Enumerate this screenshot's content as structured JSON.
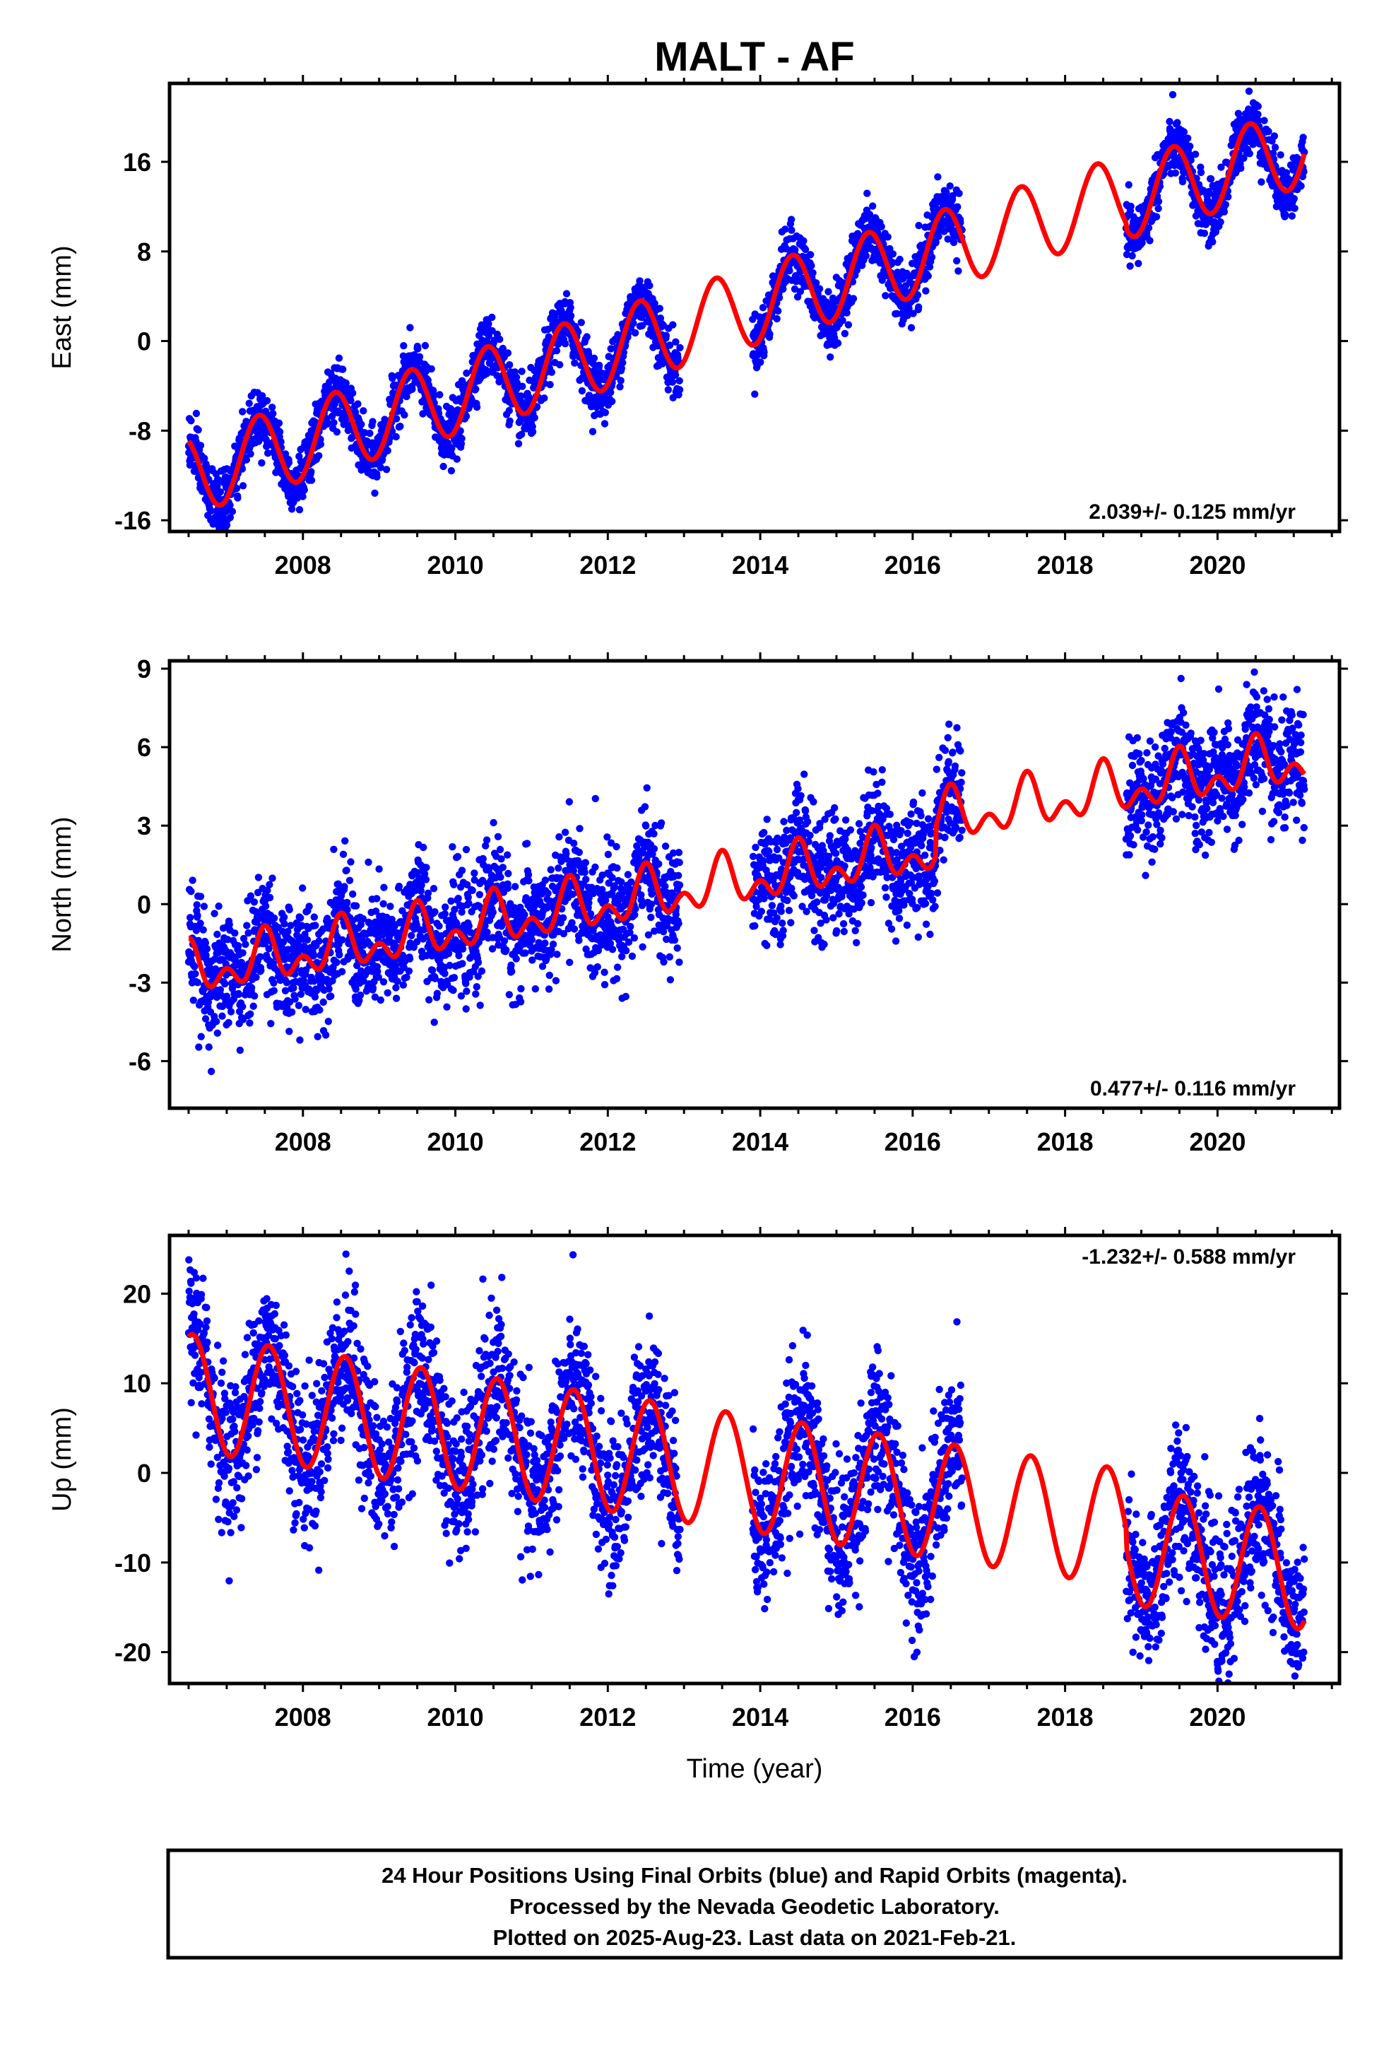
{
  "page_title": "MALT - AF",
  "x_axis_label": "Time (year)",
  "footer": [
    "24 Hour Positions Using Final Orbits (blue) and Rapid Orbits (magenta).",
    "Processed by the Nevada Geodetic Laboratory.",
    "Plotted on 2025-Aug-23. Last data on 2021-Feb-21."
  ],
  "colors": {
    "data_points": "#0000ff",
    "model_curve": "#ff0000",
    "frame": "#000000",
    "background": "#ffffff"
  },
  "chart_data": [
    {
      "type": "scatter",
      "name": "east",
      "ylabel": "East (mm)",
      "rate_label": "2.039+/- 0.125 mm/yr",
      "rate_position": "bottom-right",
      "xlim": [
        2006.25,
        2021.6
      ],
      "ylim": [
        -17,
        23
      ],
      "x_ticks": [
        2008,
        2010,
        2012,
        2014,
        2016,
        2018,
        2020
      ],
      "y_ticks": [
        -16,
        -8,
        0,
        8,
        16
      ],
      "grid": false,
      "model": {
        "rate_mm_per_yr": 2.04,
        "intercept_at_2006_5_mm": -12.0,
        "annual_amplitude_mm": 3.5,
        "annual_peak_year_fraction": 0.42,
        "semiannual_amplitude_mm": 0.0,
        "offset_from_2018_8_mm": -0.5
      },
      "data_segments": [
        [
          2006.5,
          2012.95
        ],
        [
          2013.9,
          2016.65
        ],
        [
          2018.8,
          2021.14
        ]
      ],
      "scatter_sigma_mm": 1.3
    },
    {
      "type": "scatter",
      "name": "north",
      "ylabel": "North (mm)",
      "rate_label": "0.477+/- 0.116 mm/yr",
      "rate_position": "bottom-right",
      "xlim": [
        2006.25,
        2021.6
      ],
      "ylim": [
        -7.8,
        9.3
      ],
      "x_ticks": [
        2008,
        2010,
        2012,
        2014,
        2016,
        2018,
        2020
      ],
      "y_ticks": [
        -6,
        -3,
        0,
        3,
        6,
        9
      ],
      "grid": false,
      "model": {
        "rate_mm_per_yr": 0.48,
        "intercept_at_2006_5_mm": -2.6,
        "annual_amplitude_mm": 0.7,
        "annual_peak_year_fraction": 0.5,
        "semiannual_amplitude_mm": 0.6,
        "semiannual_peak_year_fraction": 0.0,
        "offset_from_2016_3_mm": 1.1
      },
      "data_segments": [
        [
          2006.5,
          2012.95
        ],
        [
          2013.9,
          2016.65
        ],
        [
          2018.8,
          2021.14
        ]
      ],
      "scatter_sigma_mm": 1.1
    },
    {
      "type": "scatter",
      "name": "up",
      "ylabel": "Up (mm)",
      "rate_label": "-1.232+/- 0.588 mm/yr",
      "rate_position": "top-right",
      "xlim": [
        2006.25,
        2021.6
      ],
      "ylim": [
        -23.5,
        26.5
      ],
      "x_ticks": [
        2008,
        2010,
        2012,
        2014,
        2016,
        2018,
        2020
      ],
      "y_ticks": [
        -20,
        -10,
        0,
        10,
        20
      ],
      "grid": false,
      "model": {
        "rate_mm_per_yr": -1.23,
        "intercept_at_2006_5_mm": 9.0,
        "annual_amplitude_mm": 6.5,
        "annual_peak_year_fraction": 0.55,
        "semiannual_amplitude_mm": 0.0,
        "offset_from_2018_8_mm": -2.0
      },
      "data_segments": [
        [
          2006.5,
          2012.95
        ],
        [
          2013.9,
          2016.65
        ],
        [
          2018.8,
          2021.14
        ]
      ],
      "scatter_sigma_mm": 4.2
    }
  ]
}
